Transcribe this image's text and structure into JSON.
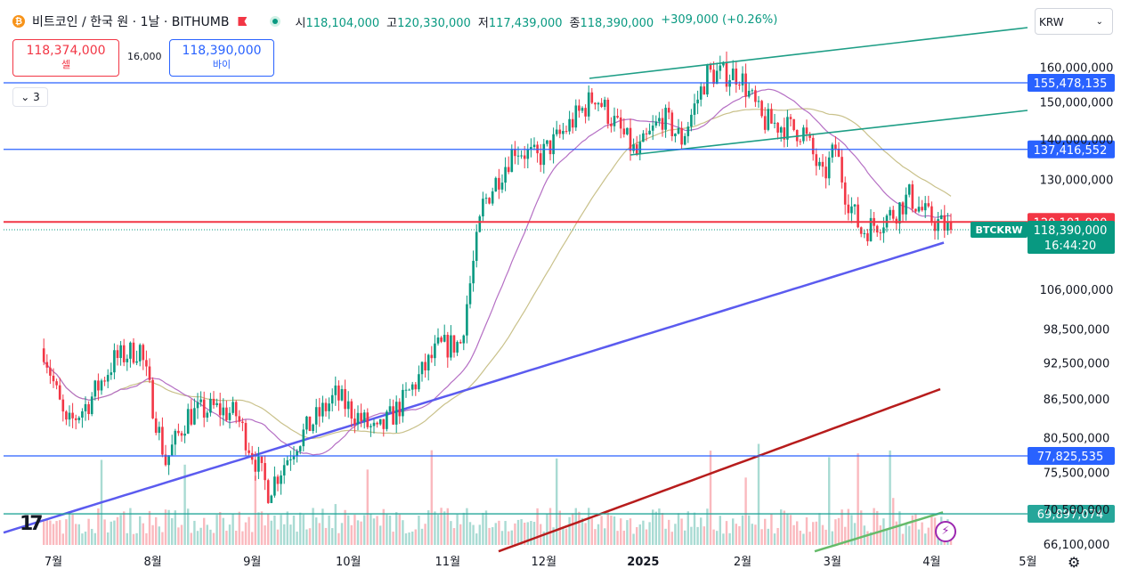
{
  "header": {
    "symbol_title": "비트코인 / 한국 원 · 1날 · BITHUMB",
    "ohlc": [
      {
        "key": "시",
        "value": "118,104,000"
      },
      {
        "key": "고",
        "value": "120,330,000"
      },
      {
        "key": "저",
        "value": "117,439,000"
      },
      {
        "key": "종",
        "value": "118,390,000"
      }
    ],
    "change": "+309,000 (+0.26%)"
  },
  "trade": {
    "sell_price": "118,374,000",
    "sell_label": "셀",
    "spread": "16,000",
    "buy_price": "118,390,000",
    "buy_label": "바이"
  },
  "indicators_collapse_label": "3",
  "currency_select": "KRW",
  "colors": {
    "up": "#089981",
    "down": "#f23645",
    "ma_purple": "#b56fc4",
    "ma_olive": "#c9c18a",
    "ma_blue": "#5b5bef",
    "ma_red": "#b71c1c",
    "ma_green": "#66bb6a",
    "trend": "#1e9e86",
    "hline_blue": "#2962ff",
    "hline_red": "#f23645",
    "hline_teal": "#26a69a"
  },
  "chart_data": {
    "type": "candlestick",
    "symbol": "BTCKRW",
    "x_axis": {
      "ticks": [
        {
          "label": "7월",
          "date": "2024-07-01"
        },
        {
          "label": "8월",
          "date": "2024-08-01"
        },
        {
          "label": "9월",
          "date": "2024-09-01"
        },
        {
          "label": "10월",
          "date": "2024-10-01"
        },
        {
          "label": "11월",
          "date": "2024-11-01"
        },
        {
          "label": "12월",
          "date": "2024-12-01"
        },
        {
          "label": "2025",
          "date": "2025-01-01"
        },
        {
          "label": "2월",
          "date": "2025-02-01"
        },
        {
          "label": "3월",
          "date": "2025-03-01"
        },
        {
          "label": "4월",
          "date": "2025-04-01"
        },
        {
          "label": "5월",
          "date": "2025-05-01"
        }
      ]
    },
    "y_axis": {
      "scale": "log",
      "ticks": [
        "160,000,000",
        "150,000,000",
        "140,000,000",
        "130,000,000",
        "106,000,000",
        "98,500,000",
        "92,500,000",
        "86,500,000",
        "80,500,000",
        "75,500,000",
        "70,500,000",
        "66,100,000"
      ]
    },
    "price_labels": [
      {
        "value": 155478135,
        "label": "155,478,135",
        "color": "#2962ff"
      },
      {
        "value": 137416552,
        "label": "137,416,552",
        "color": "#2962ff"
      },
      {
        "value": 120101000,
        "label": "120,101,000",
        "color": "#f23645"
      },
      {
        "value": 77825535,
        "label": "77,825,535",
        "color": "#2962ff"
      },
      {
        "value": 69897074,
        "label": "69,897,074",
        "color": "#26a69a"
      }
    ],
    "last_price": {
      "symbol": "BTCKRW",
      "value": 118390000,
      "label": "118,390,000",
      "countdown": "16:44:20"
    },
    "price_path": [
      [
        "2024-06-28",
        95000000
      ],
      [
        "2024-07-05",
        82000000
      ],
      [
        "2024-07-12",
        86000000
      ],
      [
        "2024-07-20",
        93000000
      ],
      [
        "2024-07-28",
        95000000
      ],
      [
        "2024-08-05",
        77000000
      ],
      [
        "2024-08-12",
        84000000
      ],
      [
        "2024-08-20",
        85000000
      ],
      [
        "2024-08-27",
        84000000
      ],
      [
        "2024-09-06",
        73000000
      ],
      [
        "2024-09-15",
        80000000
      ],
      [
        "2024-09-27",
        87000000
      ],
      [
        "2024-10-10",
        81000000
      ],
      [
        "2024-10-18",
        86000000
      ],
      [
        "2024-10-29",
        95000000
      ],
      [
        "2024-11-05",
        96000000
      ],
      [
        "2024-11-12",
        124000000
      ],
      [
        "2024-11-22",
        138000000
      ],
      [
        "2024-11-29",
        135000000
      ],
      [
        "2024-12-05",
        140000000
      ],
      [
        "2024-12-17",
        152000000
      ],
      [
        "2024-12-30",
        136000000
      ],
      [
        "2025-01-07",
        146000000
      ],
      [
        "2025-01-13",
        140000000
      ],
      [
        "2025-01-21",
        158000000
      ],
      [
        "2025-01-31",
        158000000
      ],
      [
        "2025-02-07",
        145000000
      ],
      [
        "2025-02-20",
        142000000
      ],
      [
        "2025-02-26",
        130000000
      ],
      [
        "2025-03-02",
        138000000
      ],
      [
        "2025-03-05",
        127000000
      ],
      [
        "2025-03-10",
        118000000
      ],
      [
        "2025-03-20",
        122000000
      ],
      [
        "2025-03-25",
        126000000
      ],
      [
        "2025-03-31",
        121000000
      ],
      [
        "2025-04-07",
        118390000
      ]
    ]
  }
}
